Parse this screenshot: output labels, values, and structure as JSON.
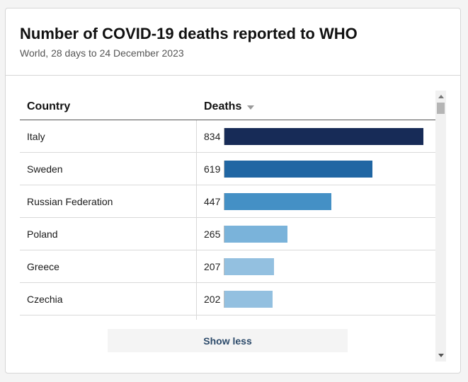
{
  "header": {
    "title": "Number of COVID-19 deaths reported to WHO",
    "subtitle": "World, 28 days to 24 December 2023"
  },
  "table": {
    "columns": [
      "Country",
      "Deaths"
    ],
    "max_value": 834,
    "rows": [
      {
        "country": "Italy",
        "deaths": "834",
        "value": 834,
        "color": "#172b57"
      },
      {
        "country": "Sweden",
        "deaths": "619",
        "value": 619,
        "color": "#2066a3"
      },
      {
        "country": "Russian Federation",
        "deaths": "447",
        "value": 447,
        "color": "#4490c5"
      },
      {
        "country": "Poland",
        "deaths": "265",
        "value": 265,
        "color": "#7ab3da"
      },
      {
        "country": "Greece",
        "deaths": "207",
        "value": 207,
        "color": "#93c0e0"
      },
      {
        "country": "Czechia",
        "deaths": "202",
        "value": 202,
        "color": "#93c0e0"
      }
    ]
  },
  "actions": {
    "show_less_label": "Show less"
  }
}
